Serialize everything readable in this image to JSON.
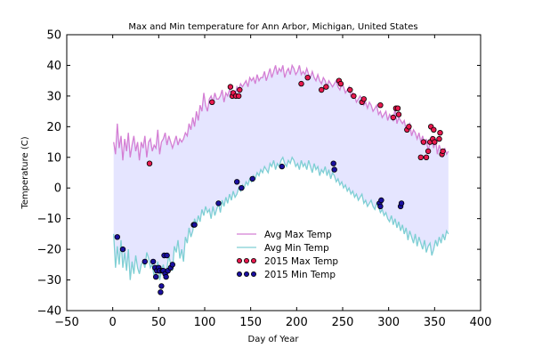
{
  "chart_data": {
    "type": "line",
    "title": "Max and Min temperature for Ann Arbor, Michigan, United States",
    "xlabel": "Day of Year",
    "ylabel": "Temperature (C)",
    "xlim": [
      -50,
      400
    ],
    "ylim": [
      -40,
      50
    ],
    "xticks": [
      -50,
      0,
      50,
      100,
      150,
      200,
      250,
      300,
      350,
      400
    ],
    "yticks": [
      -40,
      -30,
      -20,
      -10,
      0,
      10,
      20,
      30,
      40,
      50
    ],
    "grid": false,
    "legend_position": "lower center",
    "fill_between": {
      "color": "#e5e5ff",
      "between": [
        "Avg Max Temp",
        "Avg Min Temp"
      ]
    },
    "series": [
      {
        "name": "Avg Max Temp",
        "kind": "line",
        "color": "#d47fd4",
        "x": [
          1,
          3,
          5,
          7,
          9,
          11,
          13,
          15,
          17,
          19,
          21,
          23,
          25,
          27,
          29,
          31,
          33,
          35,
          37,
          39,
          41,
          43,
          45,
          47,
          49,
          51,
          53,
          55,
          57,
          59,
          61,
          63,
          65,
          67,
          69,
          71,
          73,
          75,
          77,
          79,
          81,
          83,
          85,
          87,
          89,
          91,
          93,
          95,
          97,
          99,
          101,
          103,
          105,
          107,
          109,
          111,
          113,
          115,
          117,
          119,
          121,
          123,
          125,
          127,
          129,
          131,
          133,
          135,
          137,
          139,
          141,
          143,
          145,
          147,
          149,
          151,
          153,
          155,
          157,
          159,
          161,
          163,
          165,
          167,
          169,
          171,
          173,
          175,
          177,
          179,
          181,
          183,
          185,
          187,
          189,
          191,
          193,
          195,
          197,
          199,
          201,
          203,
          205,
          207,
          209,
          211,
          213,
          215,
          217,
          219,
          221,
          223,
          225,
          227,
          229,
          231,
          233,
          235,
          237,
          239,
          241,
          243,
          245,
          247,
          249,
          251,
          253,
          255,
          257,
          259,
          261,
          263,
          265,
          267,
          269,
          271,
          273,
          275,
          277,
          279,
          281,
          283,
          285,
          287,
          289,
          291,
          293,
          295,
          297,
          299,
          301,
          303,
          305,
          307,
          309,
          311,
          313,
          315,
          317,
          319,
          321,
          323,
          325,
          327,
          329,
          331,
          333,
          335,
          337,
          339,
          341,
          343,
          345,
          347,
          349,
          351,
          353,
          355,
          357,
          359,
          361,
          363,
          365
        ],
        "y": [
          15,
          11,
          21,
          13,
          17,
          9,
          16,
          12,
          18,
          10,
          14,
          17,
          12,
          15,
          9,
          15,
          13,
          17,
          10,
          15,
          16,
          12,
          14,
          13,
          19,
          11,
          15,
          16,
          18,
          14,
          17,
          15,
          13,
          15,
          17,
          14,
          16,
          15,
          16,
          18,
          17,
          21,
          19,
          23,
          20,
          25,
          22,
          27,
          25,
          31,
          27,
          25,
          29,
          30,
          28,
          31,
          29,
          29,
          30,
          32,
          28,
          31,
          30,
          32,
          31,
          31,
          30,
          33,
          32,
          34,
          33,
          34,
          35,
          33,
          36,
          35,
          36,
          34,
          37,
          35,
          36,
          36,
          38,
          35,
          37,
          39,
          36,
          38,
          40,
          37,
          39,
          38,
          40,
          36,
          38,
          39,
          37,
          40,
          39,
          37,
          38,
          40,
          37,
          38,
          37,
          39,
          37,
          36,
          38,
          36,
          35,
          37,
          35,
          34,
          36,
          35,
          33,
          35,
          34,
          33,
          34,
          35,
          33,
          32,
          34,
          33,
          31,
          32,
          33,
          30,
          31,
          30,
          28,
          29,
          30,
          29,
          27,
          28,
          26,
          28,
          27,
          25,
          26,
          27,
          24,
          25,
          23,
          24,
          25,
          22,
          24,
          23,
          22,
          26,
          21,
          23,
          22,
          21,
          22,
          19,
          20,
          21,
          17,
          19,
          18,
          16,
          18,
          15,
          17,
          14,
          16,
          12,
          15,
          17,
          13,
          16,
          11,
          14,
          12,
          10,
          13,
          11,
          12
        ],
        "y2": [
          -15,
          -26,
          -19,
          -25,
          -17,
          -26,
          -21,
          -27,
          -20,
          -30,
          -24,
          -28,
          -22,
          -26,
          -28,
          -25,
          -24,
          -26,
          -21,
          -23,
          -26,
          -25,
          -29,
          -27,
          -24,
          -30,
          -27,
          -25,
          -29,
          -26,
          -22,
          -25,
          -27,
          -19,
          -21,
          -17,
          -23,
          -20,
          -24,
          -16,
          -18,
          -13,
          -16,
          -14,
          -10,
          -12,
          -9,
          -11,
          -7,
          -9,
          -6,
          -8,
          -7,
          -10,
          -6,
          -9,
          -7,
          -5,
          -8,
          -4,
          -6,
          -3,
          -5,
          -2,
          -4,
          -1,
          -3,
          -2,
          0,
          -1,
          1,
          0,
          2,
          1,
          3,
          2,
          4,
          3,
          5,
          4,
          6,
          5,
          7,
          6,
          5,
          8,
          7,
          9,
          6,
          8,
          7,
          9,
          10,
          8,
          7,
          9,
          8,
          10,
          9,
          7,
          8,
          6,
          9,
          7,
          8,
          6,
          9,
          7,
          5,
          8,
          6,
          7,
          4,
          6,
          5,
          7,
          4,
          6,
          3,
          5,
          4,
          2,
          3,
          1,
          2,
          0,
          1,
          -1,
          0,
          -2,
          -1,
          -3,
          -2,
          -4,
          -3,
          -2,
          -5,
          -4,
          -6,
          -5,
          -4,
          -6,
          -7,
          -5,
          -6,
          -8,
          -7,
          -9,
          -8,
          -10,
          -11,
          -9,
          -12,
          -10,
          -13,
          -11,
          -14,
          -12,
          -15,
          -13,
          -17,
          -14,
          -16,
          -18,
          -15,
          -19,
          -16,
          -18,
          -20,
          -17,
          -21,
          -19,
          -18,
          -22,
          -20,
          -17,
          -19,
          -16,
          -18,
          -15,
          -17,
          -14,
          -15
        ]
      },
      {
        "name": "Avg Min Temp",
        "kind": "line",
        "color": "#7fcfd4"
      },
      {
        "name": "2015 Max Temp",
        "kind": "scatter",
        "color": "#e8194e",
        "x": [
          40,
          108,
          128,
          130,
          131,
          134,
          137,
          138,
          205,
          212,
          227,
          232,
          246,
          248,
          258,
          262,
          271,
          273,
          291,
          305,
          308,
          310,
          311,
          320,
          322,
          335,
          338,
          341,
          343,
          345,
          346,
          348,
          349,
          350,
          355,
          356,
          358,
          359
        ],
        "y": [
          8,
          28,
          33,
          30,
          31,
          30,
          30,
          32,
          34,
          36,
          32,
          33,
          35,
          34,
          32,
          30,
          28,
          29,
          27,
          23,
          26,
          26,
          24,
          19,
          20,
          10,
          15,
          10,
          12,
          15,
          20,
          16,
          19,
          15,
          16,
          18,
          11,
          12
        ]
      },
      {
        "name": "2015 Min Temp",
        "kind": "scatter",
        "color": "#1a0fa0",
        "x": [
          5,
          11,
          35,
          44,
          46,
          47,
          48,
          50,
          51,
          52,
          53,
          54,
          55,
          56,
          57,
          58,
          59,
          60,
          63,
          65,
          88,
          89,
          115,
          135,
          140,
          152,
          184,
          240,
          241,
          290,
          291,
          292,
          313,
          314
        ],
        "y": [
          -16,
          -20,
          -24,
          -24,
          -26,
          -29,
          -27,
          -26,
          -27,
          -34,
          -32,
          -27,
          -27,
          -22,
          -28,
          -29,
          -22,
          -27,
          -26,
          -25,
          -12,
          -12,
          -5,
          2,
          0,
          3,
          7,
          8,
          6,
          -5,
          -6,
          -4,
          -6,
          -5
        ]
      }
    ],
    "legend": [
      "Avg Max Temp",
      "Avg Min Temp",
      "2015 Max Temp",
      "2015 Min Temp"
    ]
  }
}
